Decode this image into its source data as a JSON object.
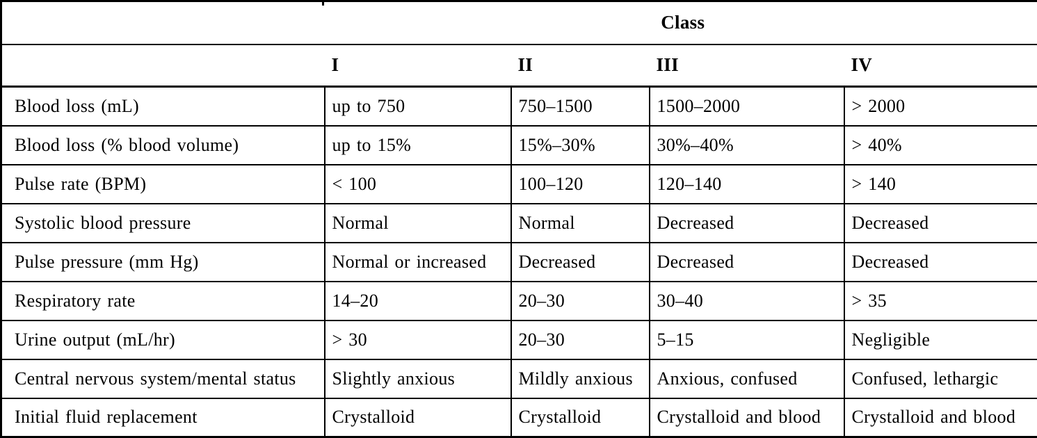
{
  "table": {
    "title_header": "Class",
    "column_headers": [
      "I",
      "II",
      "III",
      "IV"
    ],
    "rows": [
      {
        "label": "Blood loss (mL)",
        "values": [
          "up to 750",
          "750–1500",
          "1500–2000",
          "> 2000"
        ]
      },
      {
        "label": "Blood loss (% blood volume)",
        "values": [
          "up to 15%",
          "15%–30%",
          "30%–40%",
          "> 40%"
        ]
      },
      {
        "label": "Pulse rate (BPM)",
        "values": [
          "< 100",
          "100–120",
          "120–140",
          "> 140"
        ]
      },
      {
        "label": "Systolic blood pressure",
        "values": [
          "Normal",
          "Normal",
          "Decreased",
          "Decreased"
        ]
      },
      {
        "label": "Pulse pressure (mm Hg)",
        "values": [
          "Normal or increased",
          "Decreased",
          "Decreased",
          "Decreased"
        ]
      },
      {
        "label": "Respiratory rate",
        "values": [
          "14–20",
          "20–30",
          "30–40",
          "> 35"
        ]
      },
      {
        "label": "Urine output (mL/hr)",
        "values": [
          "> 30",
          "20–30",
          "5–15",
          "Negligible"
        ]
      },
      {
        "label": "Central nervous system/mental status",
        "values": [
          "Slightly anxious",
          "Mildly anxious",
          "Anxious, confused",
          "Confused, lethargic"
        ]
      },
      {
        "label": "Initial fluid replacement",
        "values": [
          "Crystalloid",
          "Crystalloid",
          "Crystalloid and blood",
          "Crystalloid and blood"
        ]
      }
    ],
    "colors": {
      "border": "#000000",
      "background": "#ffffff",
      "text": "#000000"
    }
  }
}
